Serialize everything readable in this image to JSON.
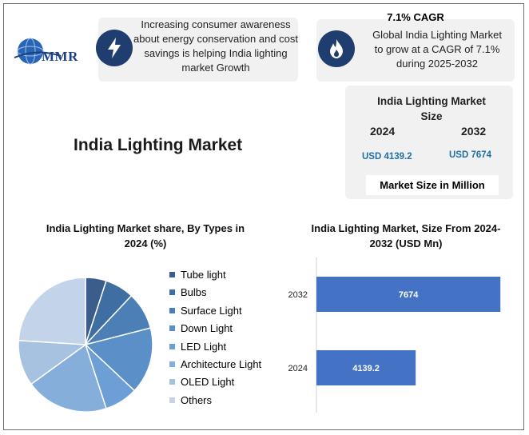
{
  "logo": {
    "text": "MMR"
  },
  "card_growth": {
    "icon": "lightning-bolt-icon",
    "lines": [
      "Increasing consumer awareness",
      "about energy conservation and cost",
      "savings is helping India lighting",
      "market Growth"
    ]
  },
  "card_cagr": {
    "icon": "flame-icon",
    "title": "7.1% CAGR",
    "lines": [
      "Global India Lighting Market",
      "to grow at a CAGR of 7.1%",
      "during 2025-2032"
    ]
  },
  "market_size": {
    "title_lines": [
      "India Lighting Market",
      "Size"
    ],
    "year_a": "2024",
    "year_b": "2032",
    "value_a": "USD 4139.2",
    "value_b": "USD 7674",
    "unit": "Market Size in Million"
  },
  "main_title": "India Lighting Market",
  "colors": {
    "accent_dark": "#1f3d6e",
    "bar": "#4472c4",
    "usd_text": "#1e6fa5",
    "card_bg": "#f1f1f1"
  },
  "chart_data": [
    {
      "type": "pie",
      "title_lines": [
        "India Lighting Market share, By Types in",
        "2024 (%)"
      ],
      "labels": [
        "Tube light",
        "Bulbs",
        "Surface Light",
        "Down Light",
        "LED Light",
        "Architecture Light",
        "OLED Light",
        "Others"
      ],
      "values": [
        5,
        7,
        9,
        16,
        8,
        20,
        11,
        24
      ],
      "colors": [
        "#3a5d8c",
        "#3f6ea2",
        "#4b7fb6",
        "#5a8fc8",
        "#6d9fd6",
        "#85aedb",
        "#a7c1e1",
        "#c3d3ea"
      ],
      "legend_position": "right"
    },
    {
      "type": "bar",
      "orientation": "horizontal",
      "title_lines": [
        "India Lighting Market, Size From 2024-",
        "2032 (USD Mn)"
      ],
      "categories": [
        "2032",
        "2024"
      ],
      "values": [
        7674,
        4139.2
      ],
      "value_labels": [
        "7674",
        "4139.2"
      ],
      "xlim": [
        0,
        8200
      ]
    }
  ]
}
